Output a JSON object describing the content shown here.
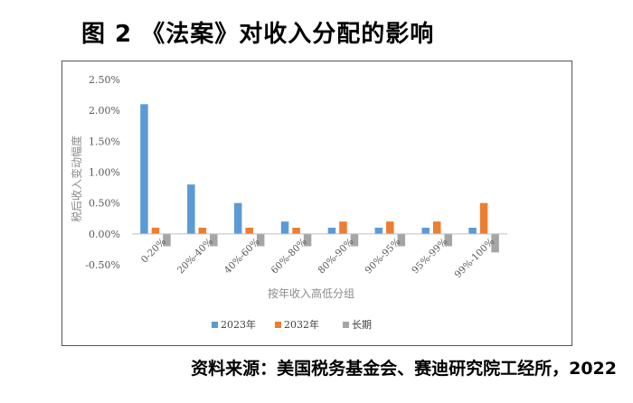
{
  "figure": {
    "title": "图 2  《法案》对收入分配的影响",
    "source": "资料来源：美国税务基金会、赛迪研究院工经所，2022"
  },
  "chart_data": {
    "type": "bar",
    "xlabel": "按年收入高低分组",
    "ylabel": "税后收入变动幅度",
    "ylim": [
      -0.5,
      2.5
    ],
    "yticks": [
      2.5,
      2.0,
      1.5,
      1.0,
      0.5,
      0.0,
      -0.5
    ],
    "ytick_labels": [
      "2.50%",
      "2.00%",
      "1.50%",
      "1.00%",
      "0.50%",
      "0.00%",
      "-0.50%"
    ],
    "categories": [
      "0-20%",
      "20%-40%",
      "40%-60%",
      "60%-80%",
      "80%-90%",
      "90%-95%",
      "95%-99%",
      "99%-100%"
    ],
    "series": [
      {
        "name": "2023年",
        "color": "#5b9bd5",
        "values": [
          2.1,
          0.8,
          0.5,
          0.2,
          0.1,
          0.1,
          0.1,
          0.1
        ]
      },
      {
        "name": "2032年",
        "color": "#ed7d31",
        "values": [
          0.1,
          0.1,
          0.1,
          0.1,
          0.2,
          0.2,
          0.2,
          0.5
        ]
      },
      {
        "name": "长期",
        "color": "#a5a5a5",
        "values": [
          -0.2,
          -0.2,
          -0.2,
          -0.2,
          -0.2,
          -0.2,
          -0.2,
          -0.3
        ]
      }
    ],
    "grid": false,
    "legend_position": "bottom"
  }
}
